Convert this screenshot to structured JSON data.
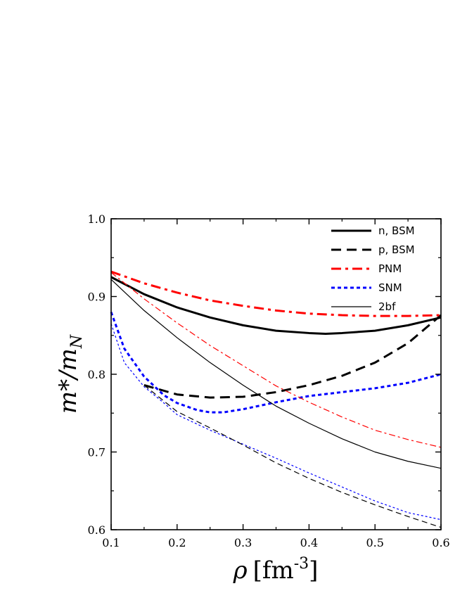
{
  "chart_data": {
    "type": "line",
    "xlabel": "ρ [fm-3]",
    "xlabel_parts": {
      "symbol": "ρ",
      "unit_open": "[fm",
      "exponent": "-3",
      "unit_close": "]"
    },
    "ylabel": "m*/mN",
    "ylabel_parts": {
      "main": "m*/m",
      "sub": "N"
    },
    "xlim": [
      0.1,
      0.6
    ],
    "ylim": [
      0.6,
      1.0
    ],
    "xticks": [
      "0.1",
      "0.2",
      "0.3",
      "0.4",
      "0.5",
      "0.6"
    ],
    "yticks": [
      "0.6",
      "0.7",
      "0.8",
      "0.9",
      "1.0"
    ],
    "grid": false,
    "legend_position": "top-right",
    "legend": [
      {
        "label": "n, BSM",
        "color": "#000000",
        "dash": "solid",
        "width": 3
      },
      {
        "label": "p, BSM",
        "color": "#000000",
        "dash": "dashed",
        "width": 3
      },
      {
        "label": "PNM",
        "color": "#ff0000",
        "dash": "dashdot",
        "width": 3
      },
      {
        "label": "SNM",
        "color": "#0000ff",
        "dash": "dotted",
        "width": 3
      },
      {
        "label": "2bf",
        "color": "#000000",
        "dash": "solid",
        "width": 1.2
      }
    ],
    "series": [
      {
        "name": "n, BSM",
        "color": "#000000",
        "dash": "solid",
        "width": 3,
        "x": [
          0.1,
          0.15,
          0.2,
          0.25,
          0.3,
          0.35,
          0.4,
          0.425,
          0.45,
          0.5,
          0.55,
          0.6
        ],
        "y": [
          0.925,
          0.903,
          0.886,
          0.873,
          0.863,
          0.856,
          0.853,
          0.852,
          0.853,
          0.856,
          0.863,
          0.873
        ]
      },
      {
        "name": "p, BSM",
        "color": "#000000",
        "dash": "dashed",
        "width": 3,
        "x": [
          0.15,
          0.2,
          0.25,
          0.3,
          0.35,
          0.4,
          0.45,
          0.5,
          0.55,
          0.6
        ],
        "y": [
          0.786,
          0.774,
          0.77,
          0.771,
          0.777,
          0.786,
          0.798,
          0.815,
          0.84,
          0.876
        ]
      },
      {
        "name": "PNM",
        "color": "#ff0000",
        "dash": "dashdot",
        "width": 3,
        "x": [
          0.1,
          0.15,
          0.2,
          0.25,
          0.3,
          0.35,
          0.4,
          0.45,
          0.5,
          0.55,
          0.6
        ],
        "y": [
          0.932,
          0.917,
          0.905,
          0.895,
          0.888,
          0.882,
          0.878,
          0.876,
          0.875,
          0.875,
          0.876
        ]
      },
      {
        "name": "SNM",
        "color": "#0000ff",
        "dash": "dotted",
        "width": 3,
        "x": [
          0.1,
          0.12,
          0.15,
          0.18,
          0.2,
          0.23,
          0.25,
          0.27,
          0.3,
          0.35,
          0.4,
          0.45,
          0.5,
          0.55,
          0.6
        ],
        "y": [
          0.88,
          0.833,
          0.797,
          0.773,
          0.763,
          0.754,
          0.751,
          0.751,
          0.755,
          0.764,
          0.772,
          0.777,
          0.782,
          0.789,
          0.8
        ]
      },
      {
        "name": "2bf",
        "color": "#000000",
        "dash": "solid",
        "width": 1.2,
        "x": [
          0.1,
          0.15,
          0.2,
          0.25,
          0.3,
          0.35,
          0.4,
          0.45,
          0.5,
          0.55,
          0.6
        ],
        "y": [
          0.922,
          0.882,
          0.847,
          0.815,
          0.786,
          0.759,
          0.737,
          0.717,
          0.7,
          0.688,
          0.679
        ]
      },
      {
        "name": "",
        "color": "#ff0000",
        "dash": "dashdot",
        "width": 1.2,
        "x": [
          0.1,
          0.15,
          0.2,
          0.25,
          0.3,
          0.35,
          0.4,
          0.45,
          0.5,
          0.55,
          0.6
        ],
        "y": [
          0.931,
          0.897,
          0.866,
          0.837,
          0.811,
          0.785,
          0.764,
          0.745,
          0.728,
          0.716,
          0.706
        ]
      },
      {
        "name": "",
        "color": "#0000ff",
        "dash": "dotted",
        "width": 1.2,
        "x": [
          0.1,
          0.12,
          0.15,
          0.18,
          0.2,
          0.25,
          0.3,
          0.35,
          0.4,
          0.45,
          0.5,
          0.55,
          0.6
        ],
        "y": [
          0.865,
          0.815,
          0.784,
          0.763,
          0.748,
          0.728,
          0.71,
          0.692,
          0.673,
          0.655,
          0.637,
          0.622,
          0.613
        ]
      },
      {
        "name": "",
        "color": "#000000",
        "dash": "dashed",
        "width": 1.2,
        "x": [
          0.15,
          0.2,
          0.25,
          0.3,
          0.35,
          0.4,
          0.45,
          0.5,
          0.55,
          0.6
        ],
        "y": [
          0.786,
          0.752,
          0.731,
          0.709,
          0.686,
          0.666,
          0.648,
          0.632,
          0.617,
          0.603
        ]
      }
    ]
  }
}
